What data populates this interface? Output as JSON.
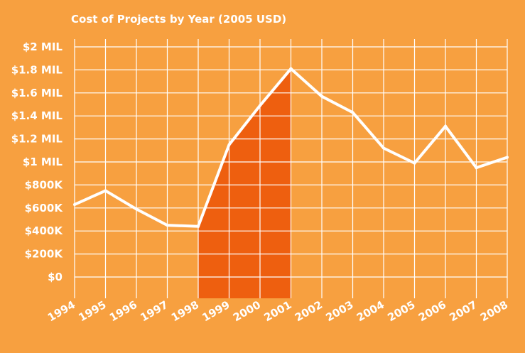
{
  "chart_data": {
    "type": "line",
    "title": "Cost of Projects by Year (2005 USD)",
    "xlabel": "",
    "ylabel": "",
    "categories": [
      "1994",
      "1995",
      "1996",
      "1997",
      "1998",
      "1999",
      "2000",
      "2001",
      "2002",
      "2003",
      "2004",
      "2005",
      "2006",
      "2007",
      "2008"
    ],
    "x": [
      1994,
      1995,
      1996,
      1997,
      1998,
      1999,
      2000,
      2001,
      2002,
      2003,
      2004,
      2005,
      2006,
      2007,
      2008
    ],
    "values": [
      630000,
      750000,
      590000,
      450000,
      440000,
      1150000,
      1490000,
      1810000,
      1570000,
      1430000,
      1120000,
      990000,
      1310000,
      950000,
      1040000
    ],
    "ylim": [
      0,
      2000000
    ],
    "y_ticks": [
      0,
      200000,
      400000,
      600000,
      800000,
      1000000,
      1200000,
      1400000,
      1600000,
      1800000,
      2000000
    ],
    "y_tick_labels": [
      "$0",
      "$200K",
      "$400K",
      "$600K",
      "$800K",
      "$1 MIL",
      "$1.2 MIL",
      "$1.4 MIL",
      "$1.6 MIL",
      "$1.8 MIL",
      "$2 MIL"
    ],
    "highlight_range": [
      "1998",
      "2001"
    ],
    "grid": true,
    "colors": {
      "background": "#F7A040",
      "line": "#ffffff",
      "grid": "#ffffff",
      "highlight": "#EE5F0F",
      "text": "#ffffff"
    }
  }
}
